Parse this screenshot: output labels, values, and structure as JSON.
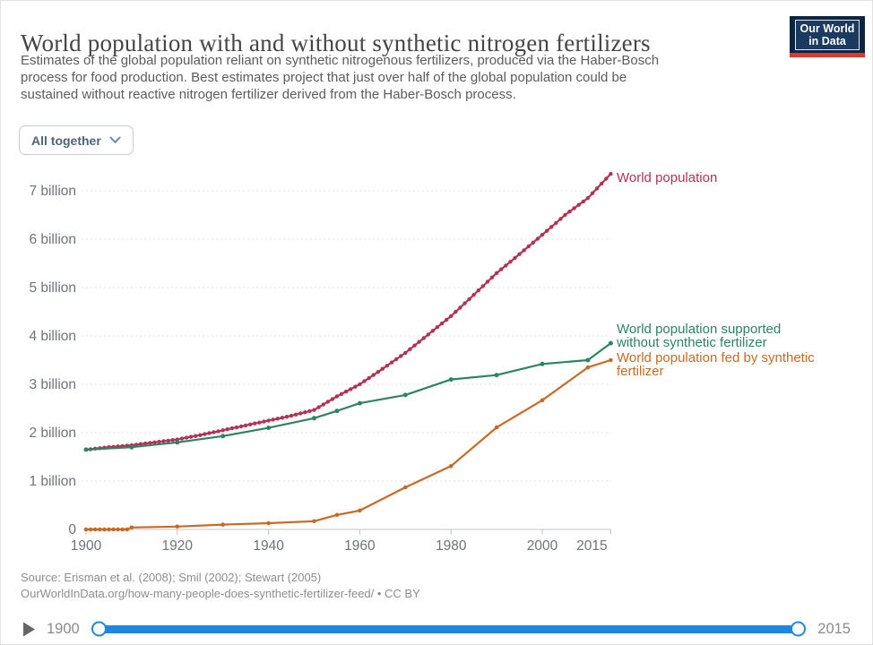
{
  "header": {
    "title": "World population with and without synthetic nitrogen fertilizers",
    "subtitle_lines": [
      "Estimates of the global population reliant on synthetic nitrogenous fertilizers, produced via the Haber-Bosch",
      "process for food production. Best estimates project that just over half of the global population could be",
      "sustained without reactive nitrogen fertilizer derived from the Haber-Bosch process."
    ],
    "logo": {
      "line1": "Our World",
      "line2": "in Data",
      "bg_color": "#0a2540",
      "accent_color": "#d93a2a"
    }
  },
  "controls": {
    "entity_dropdown_label": "All together"
  },
  "chart_data": {
    "type": "line",
    "title": "World population with and without synthetic nitrogen fertilizers",
    "xlabel": "",
    "ylabel": "",
    "xlim": [
      1900,
      2015
    ],
    "ylim": [
      0,
      7.5
    ],
    "grid": "dashed-horizontal",
    "legend_position": "direct-labels-right",
    "xticks": [
      1900,
      1920,
      1940,
      1960,
      1980,
      2000,
      2015
    ],
    "yticks": [
      {
        "value": 0,
        "label": "0"
      },
      {
        "value": 1,
        "label": "1 billion"
      },
      {
        "value": 2,
        "label": "2 billion"
      },
      {
        "value": 3,
        "label": "3 billion"
      },
      {
        "value": 4,
        "label": "4 billion"
      },
      {
        "value": 5,
        "label": "5 billion"
      },
      {
        "value": 6,
        "label": "6 billion"
      },
      {
        "value": 7,
        "label": "7 billion"
      }
    ],
    "unit": "billion people",
    "series": [
      {
        "name": "World population",
        "color": "#b13356",
        "annual_dots": true,
        "marker_r": 2.2,
        "label_lines": [
          "World population"
        ],
        "label_dy": [
          9
        ],
        "x": [
          1900,
          1905,
          1910,
          1915,
          1920,
          1925,
          1930,
          1935,
          1940,
          1945,
          1950,
          1955,
          1960,
          1965,
          1970,
          1975,
          1980,
          1985,
          1990,
          1995,
          2000,
          2005,
          2010,
          2015
        ],
        "values": [
          1.65,
          1.7,
          1.74,
          1.8,
          1.86,
          1.95,
          2.05,
          2.15,
          2.25,
          2.35,
          2.47,
          2.75,
          3.0,
          3.32,
          3.65,
          4.03,
          4.41,
          4.85,
          5.3,
          5.69,
          6.09,
          6.5,
          6.85,
          7.35
        ]
      },
      {
        "name": "World population supported without synthetic fertilizer",
        "color": "#2c8465",
        "annual_dots": false,
        "marker_r": 2.5,
        "label_lines": [
          "World population supported",
          "without synthetic fertilizer"
        ],
        "label_dy": [
          -11,
          4
        ],
        "x": [
          1900,
          1910,
          1920,
          1930,
          1940,
          1950,
          1955,
          1960,
          1970,
          1980,
          1990,
          2000,
          2010,
          2015
        ],
        "values": [
          1.65,
          1.7,
          1.8,
          1.93,
          2.1,
          2.3,
          2.45,
          2.61,
          2.78,
          3.1,
          3.19,
          3.42,
          3.5,
          3.85
        ]
      },
      {
        "name": "World population fed by synthetic fertilizer",
        "color": "#c86a26",
        "annual_dots": false,
        "marker_r": 2.3,
        "label_lines": [
          "World population fed by synthetic",
          "fertilizer"
        ],
        "label_dy": [
          2,
          17
        ],
        "x": [
          1900,
          1901,
          1902,
          1903,
          1904,
          1905,
          1906,
          1907,
          1908,
          1909,
          1910,
          1920,
          1930,
          1940,
          1950,
          1955,
          1960,
          1970,
          1980,
          1990,
          2000,
          2010,
          2015
        ],
        "values": [
          0,
          0,
          0,
          0,
          0,
          0,
          0,
          0,
          0,
          0,
          0.04,
          0.06,
          0.1,
          0.13,
          0.17,
          0.3,
          0.39,
          0.87,
          1.31,
          2.11,
          2.67,
          3.35,
          3.5
        ]
      }
    ]
  },
  "footer": {
    "source_line1": "Source: Erisman et al. (2008); Smil (2002); Stewart (2005)",
    "source_line2": "OurWorldInData.org/how-many-people-does-synthetic-fertilizer-feed/ • CC BY"
  },
  "timeline": {
    "start_label": "1900",
    "end_label": "2015",
    "track_color": "#1f87e0"
  }
}
